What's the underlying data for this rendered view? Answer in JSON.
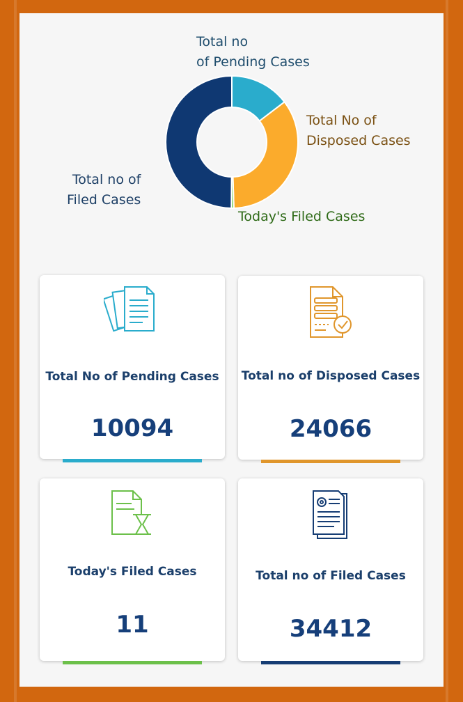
{
  "chart_data": {
    "type": "donut",
    "slices": [
      {
        "label": "Total no of Pending Cases",
        "value": 10094,
        "color": "#2aaccc"
      },
      {
        "label": "Total No of Disposed Cases",
        "value": 24066,
        "color": "#fbab2c"
      },
      {
        "label": "Today's Filed Cases",
        "value": 11,
        "color": "#5fc63a"
      },
      {
        "label": "Total no of Filed Cases",
        "value": 34412,
        "color": "#0f3872"
      }
    ],
    "labels": {
      "pending_line1": "Total no",
      "pending_line2": "of Pending Cases",
      "disposed_line1": "Total No of",
      "disposed_line2": "Disposed Cases",
      "today": "Today's Filed Cases",
      "filed_line1": "Total no of",
      "filed_line2": "Filed Cases"
    },
    "label_colors": {
      "pending": "#1f4d6d",
      "disposed": "#7a5012",
      "today": "#2e6a17",
      "filed": "#1d3f66"
    }
  },
  "cards": {
    "pending": {
      "label": "Total No of Pending Cases",
      "value": "10094",
      "color": "#2aaccc",
      "icon": "documents-icon"
    },
    "disposed": {
      "label": "Total no of Disposed Cases",
      "value": "24066",
      "color": "#e0962c",
      "icon": "approved-document-icon"
    },
    "today": {
      "label": "Today's Filed Cases",
      "value": "11",
      "color": "#6cc04a",
      "icon": "document-hourglass-icon"
    },
    "filed": {
      "label": "Total no of Filed Cases",
      "value": "34412",
      "color": "#163d74",
      "icon": "certificate-document-icon"
    }
  }
}
